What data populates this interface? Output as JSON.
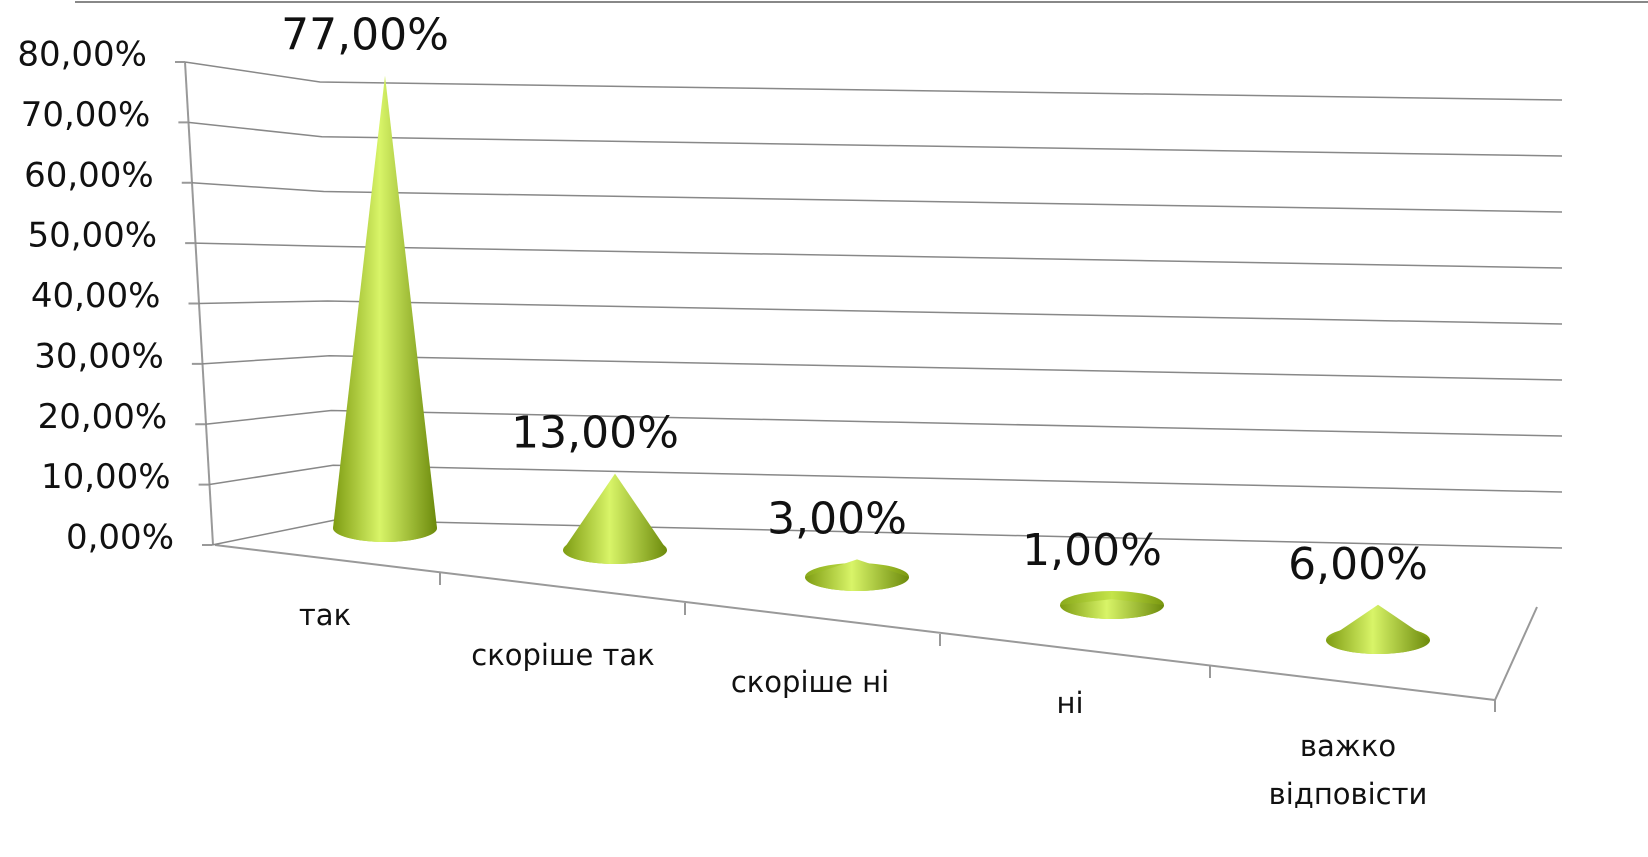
{
  "chart_data": {
    "type": "cone",
    "categories": [
      "так",
      "скоріше так",
      "скоріше ні",
      "ні",
      "важко відповісти"
    ],
    "values": [
      77,
      13,
      3,
      1,
      6
    ],
    "value_labels": [
      "77,00%",
      "13,00%",
      "3,00%",
      "1,00%",
      "6,00%"
    ],
    "color": "#a8cc2a",
    "ylim": [
      0,
      80
    ],
    "yticks": [
      {
        "value": 0,
        "label": "0,00%"
      },
      {
        "value": 10,
        "label": "10,00%"
      },
      {
        "value": 20,
        "label": "20,00%"
      },
      {
        "value": 30,
        "label": "30,00%"
      },
      {
        "value": 40,
        "label": "40,00%"
      },
      {
        "value": 50,
        "label": "50,00%"
      },
      {
        "value": 60,
        "label": "60,00%"
      },
      {
        "value": 70,
        "label": "70,00%"
      },
      {
        "value": 80,
        "label": "80,00%"
      }
    ],
    "grid": true
  }
}
